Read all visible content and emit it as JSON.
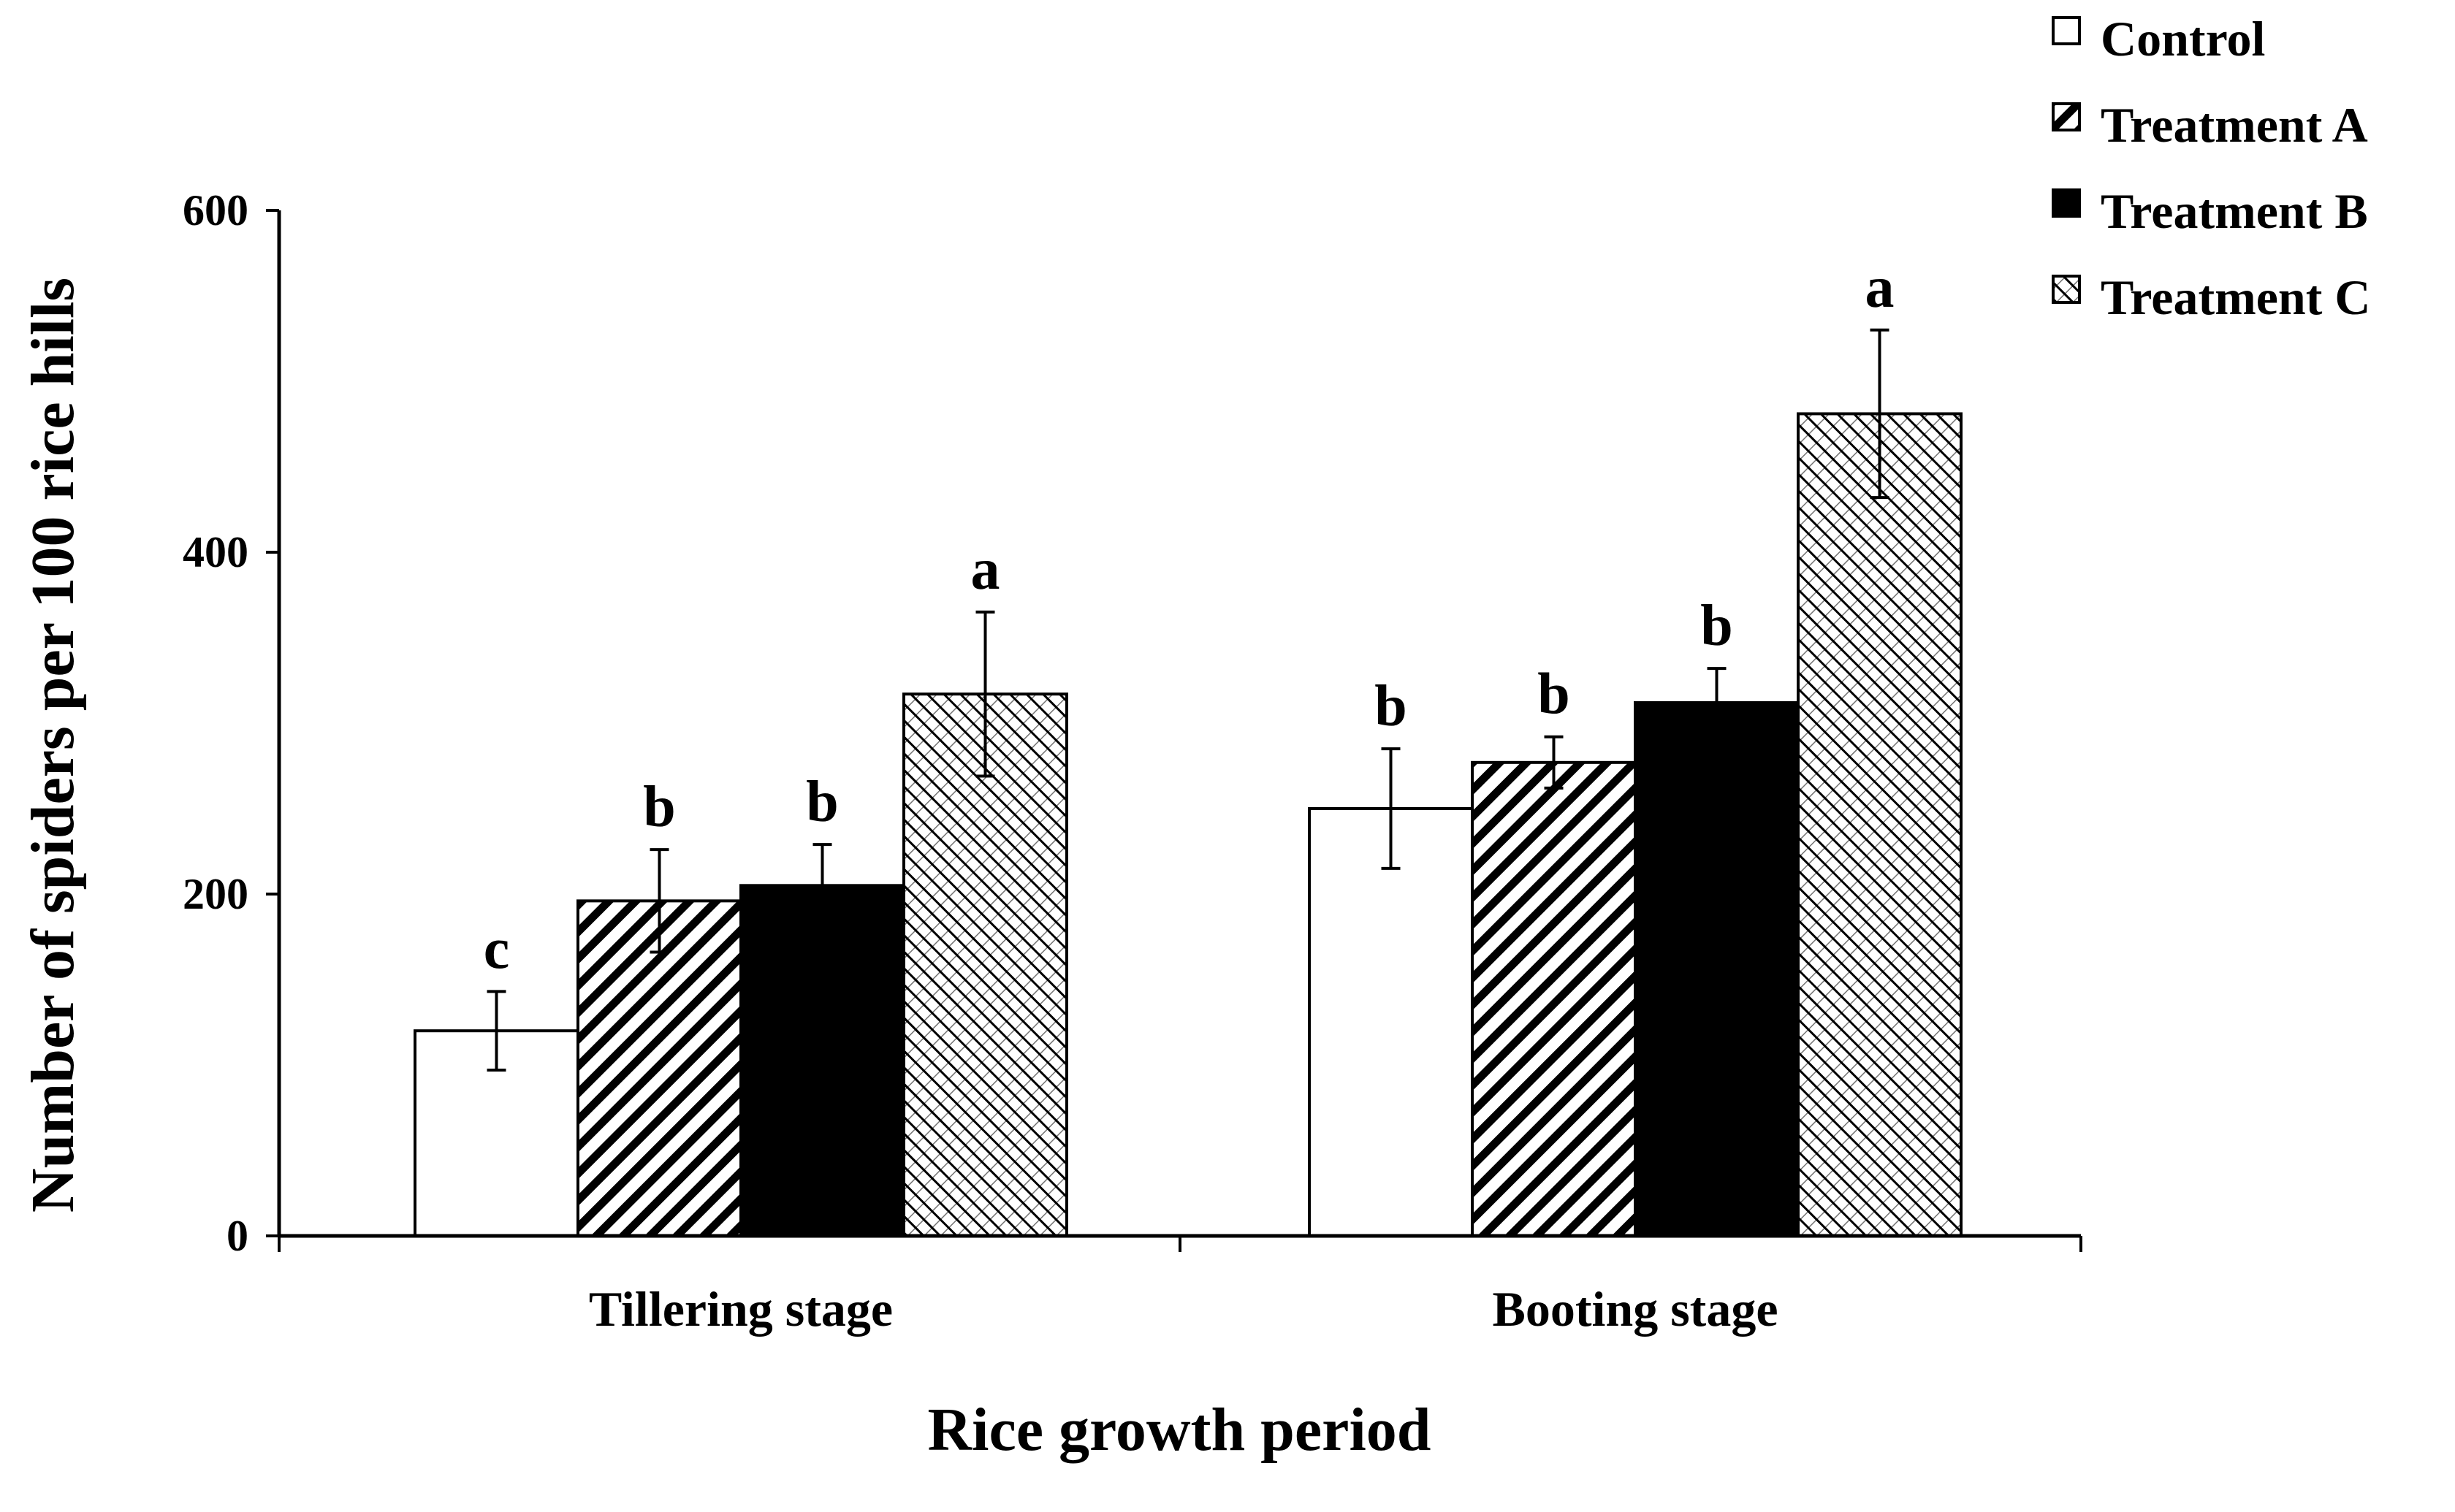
{
  "chart_data": {
    "type": "bar",
    "title": "",
    "xlabel": "Rice growth period",
    "ylabel": "Number of spiders per 100 rice hills",
    "ylim": [
      0,
      600
    ],
    "yticks": [
      0,
      200,
      400,
      600
    ],
    "categories": [
      "Tillering stage",
      "Booting stage"
    ],
    "legend_position": "top-right",
    "series": [
      {
        "name": "Control",
        "pattern": "none",
        "values": [
          120,
          250
        ],
        "errors": [
          23,
          35
        ],
        "letters": [
          "c",
          "b"
        ]
      },
      {
        "name": "Treatment A",
        "pattern": "diag-a",
        "values": [
          196,
          277
        ],
        "errors": [
          30,
          15
        ],
        "letters": [
          "b",
          "b"
        ]
      },
      {
        "name": "Treatment B",
        "pattern": "solid",
        "values": [
          205,
          312
        ],
        "errors": [
          24,
          20
        ],
        "letters": [
          "b",
          "b"
        ]
      },
      {
        "name": "Treatment C",
        "pattern": "diag-c",
        "values": [
          317,
          481
        ],
        "errors": [
          48,
          49
        ],
        "letters": [
          "a",
          "a"
        ]
      }
    ]
  },
  "colors": {
    "ink": "#000000",
    "paper": "#ffffff"
  }
}
